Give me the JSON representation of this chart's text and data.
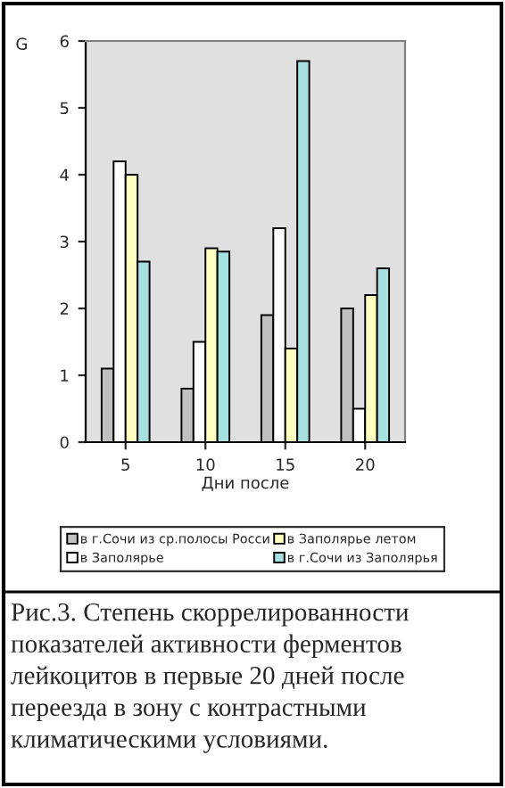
{
  "chart_data": {
    "type": "bar",
    "ylabel": "G",
    "xlabel": "Дни после",
    "categories": [
      "5",
      "10",
      "15",
      "20"
    ],
    "series": [
      {
        "name": "в г.Сочи из ср.полосы Росси",
        "color": "#c0c0c0",
        "values": [
          1.1,
          0.8,
          1.9,
          2.0
        ]
      },
      {
        "name": "в Заполярье",
        "color": "#ffffff",
        "values": [
          4.2,
          1.5,
          3.2,
          0.5
        ]
      },
      {
        "name": "в Заполярье летом",
        "color": "#ffffc0",
        "values": [
          4.0,
          2.9,
          1.4,
          2.2
        ]
      },
      {
        "name": "в г.Сочи из Заполярья",
        "color": "#a6e0e0",
        "values": [
          2.7,
          2.85,
          5.7,
          2.6
        ]
      }
    ],
    "ylim": [
      0,
      6
    ],
    "yticks": [
      0,
      1,
      2,
      3,
      4,
      5,
      6
    ],
    "grid": false,
    "legend": "bottom",
    "annotations": [
      "Рис.3. Степень скоррелированности показателей активности ферментов лейкоцитов в первые 20 дней после переезда в зону с контрастными климатическими условиями."
    ]
  }
}
